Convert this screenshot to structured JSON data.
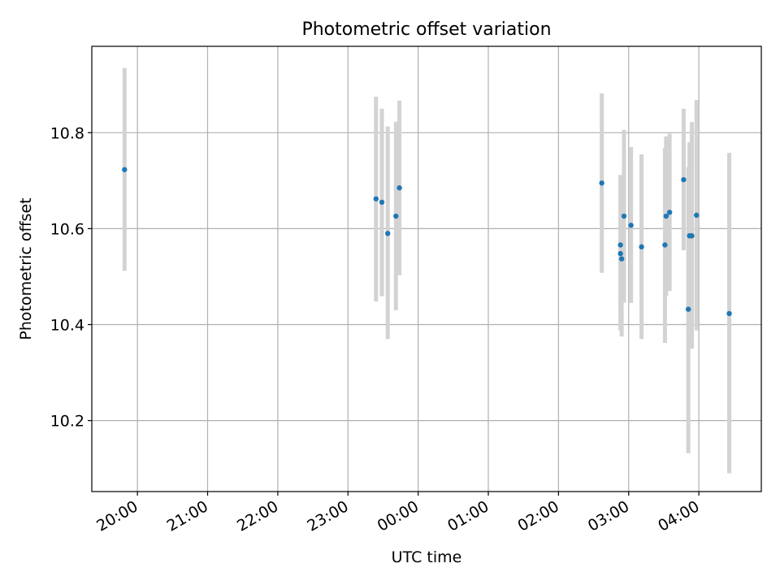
{
  "chart_data": {
    "type": "scatter",
    "title": "Photometric offset variation",
    "xlabel": "UTC time",
    "ylabel": "Photometric offset",
    "grid": true,
    "legend": "none",
    "x_range_hours": [
      19.35,
      28.89
    ],
    "xlim": [
      "19:21",
      "04:53"
    ],
    "ylim": [
      10.052,
      10.98
    ],
    "x_ticks": [
      {
        "value": 20.0,
        "label": "20:00"
      },
      {
        "value": 21.0,
        "label": "21:00"
      },
      {
        "value": 22.0,
        "label": "22:00"
      },
      {
        "value": 23.0,
        "label": "23:00"
      },
      {
        "value": 24.0,
        "label": "00:00"
      },
      {
        "value": 25.0,
        "label": "01:00"
      },
      {
        "value": 26.0,
        "label": "02:00"
      },
      {
        "value": 27.0,
        "label": "03:00"
      },
      {
        "value": 28.0,
        "label": "04:00"
      }
    ],
    "y_ticks": [
      {
        "value": 10.2,
        "label": "10.2"
      },
      {
        "value": 10.4,
        "label": "10.4"
      },
      {
        "value": 10.6,
        "label": "10.6"
      },
      {
        "value": 10.8,
        "label": "10.8"
      }
    ],
    "colors": {
      "point": "#1f77b4",
      "errorbar": "#d3d3d3",
      "grid": "#b0b0b0"
    },
    "series": [
      {
        "points": [
          {
            "x": "19:49",
            "y": 10.723,
            "lo": 10.512,
            "hi": 10.935
          },
          {
            "x": "23:24",
            "y": 10.662,
            "lo": 10.448,
            "hi": 10.875
          },
          {
            "x": "23:29",
            "y": 10.655,
            "lo": 10.459,
            "hi": 10.85
          },
          {
            "x": "23:34",
            "y": 10.59,
            "lo": 10.37,
            "hi": 10.813
          },
          {
            "x": "23:41",
            "y": 10.626,
            "lo": 10.43,
            "hi": 10.823
          },
          {
            "x": "23:44",
            "y": 10.685,
            "lo": 10.503,
            "hi": 10.867
          },
          {
            "x": "02:37",
            "y": 10.695,
            "lo": 10.508,
            "hi": 10.882
          },
          {
            "x": "02:53",
            "y": 10.566,
            "lo": 10.42,
            "hi": 10.712
          },
          {
            "x": "02:53",
            "y": 10.548,
            "lo": 10.388,
            "hi": 10.71
          },
          {
            "x": "02:54",
            "y": 10.537,
            "lo": 10.375,
            "hi": 10.7
          },
          {
            "x": "02:56",
            "y": 10.626,
            "lo": 10.446,
            "hi": 10.806
          },
          {
            "x": "03:02",
            "y": 10.607,
            "lo": 10.445,
            "hi": 10.77
          },
          {
            "x": "03:11",
            "y": 10.562,
            "lo": 10.37,
            "hi": 10.755
          },
          {
            "x": "03:31",
            "y": 10.566,
            "lo": 10.362,
            "hi": 10.768
          },
          {
            "x": "03:32",
            "y": 10.626,
            "lo": 10.46,
            "hi": 10.792
          },
          {
            "x": "03:35",
            "y": 10.634,
            "lo": 10.47,
            "hi": 10.798
          },
          {
            "x": "03:47",
            "y": 10.702,
            "lo": 10.555,
            "hi": 10.85
          },
          {
            "x": "03:51",
            "y": 10.432,
            "lo": 10.132,
            "hi": 10.728
          },
          {
            "x": "03:52",
            "y": 10.585,
            "lo": 10.39,
            "hi": 10.78
          },
          {
            "x": "03:54",
            "y": 10.585,
            "lo": 10.35,
            "hi": 10.822
          },
          {
            "x": "03:58",
            "y": 10.628,
            "lo": 10.388,
            "hi": 10.868
          },
          {
            "x": "04:26",
            "y": 10.423,
            "lo": 10.09,
            "hi": 10.758
          }
        ]
      }
    ]
  }
}
